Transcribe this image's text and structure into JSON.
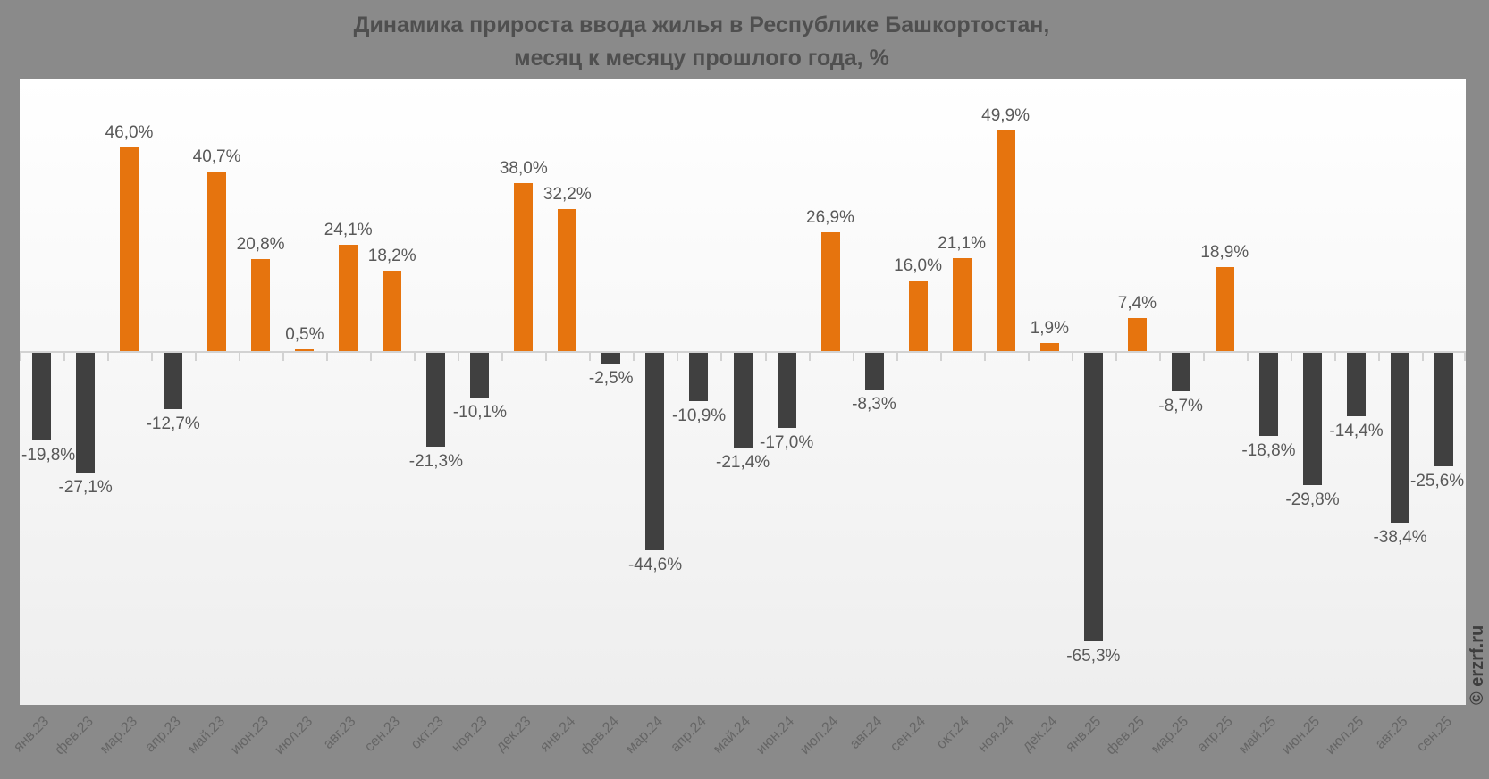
{
  "title": {
    "line1": "Динамика прироста ввода жилья в Республике Башкортостан,",
    "line2": "месяц к месяцу прошлого года, %"
  },
  "watermark": "© erzrf.ru",
  "colors": {
    "background": "#8A8A8A",
    "title": "#4F4F4F",
    "plot_background_top": "#FFFFFF",
    "plot_background_bottom": "#EEEEEE",
    "axis_line": "#D2D2D2",
    "positive_bar": "#E6740E",
    "negative_bar": "#404040",
    "data_label": "#595959",
    "axis_label": "#666666",
    "watermark": "#3E3E3E"
  },
  "chart_data": {
    "type": "bar",
    "title": "Динамика прироста ввода жилья в Республике Башкортостан, месяц к месяцу прошлого года, %",
    "xlabel": "",
    "ylabel": "%",
    "ylim": [
      -80,
      62
    ],
    "grid": "off",
    "legend": "none",
    "categories": [
      "янв.23",
      "фев.23",
      "мар.23",
      "апр.23",
      "май.23",
      "июн.23",
      "июл.23",
      "авг.23",
      "сен.23",
      "окт.23",
      "ноя.23",
      "дек.23",
      "янв.24",
      "фев.24",
      "мар.24",
      "апр.24",
      "май.24",
      "июн.24",
      "июл.24",
      "авг.24",
      "сен.24",
      "окт.24",
      "ноя.24",
      "дек.24",
      "янв.25",
      "фев.25",
      "мар.25",
      "апр.25",
      "май.25",
      "июн.25",
      "июл.25",
      "авг.25",
      "сен.25"
    ],
    "values": [
      -19.8,
      -27.1,
      46.0,
      -12.7,
      40.7,
      20.8,
      0.5,
      24.1,
      18.2,
      -21.3,
      -10.1,
      38.0,
      32.2,
      -2.5,
      -44.6,
      -10.9,
      -21.4,
      -17.0,
      26.9,
      -8.3,
      16.0,
      21.1,
      49.9,
      1.9,
      -65.3,
      7.4,
      -8.7,
      18.9,
      -18.8,
      -29.8,
      -14.4,
      -38.4,
      -25.6
    ],
    "data_labels": [
      "-19,8%",
      "-27,1%",
      "46,0%",
      "-12,7%",
      "40,7%",
      "20,8%",
      "0,5%",
      "24,1%",
      "18,2%",
      "-21,3%",
      "-10,1%",
      "38,0%",
      "32,2%",
      "-2,5%",
      "-44,6%",
      "-10,9%",
      "-21,4%",
      "-17,0%",
      "26,9%",
      "-8,3%",
      "16,0%",
      "21,1%",
      "49,9%",
      "1,9%",
      "-65,3%",
      "7,4%",
      "-8,7%",
      "18,9%",
      "-18,8%",
      "-29,8%",
      "-14,4%",
      "-38,4%",
      "-25,6%"
    ]
  }
}
